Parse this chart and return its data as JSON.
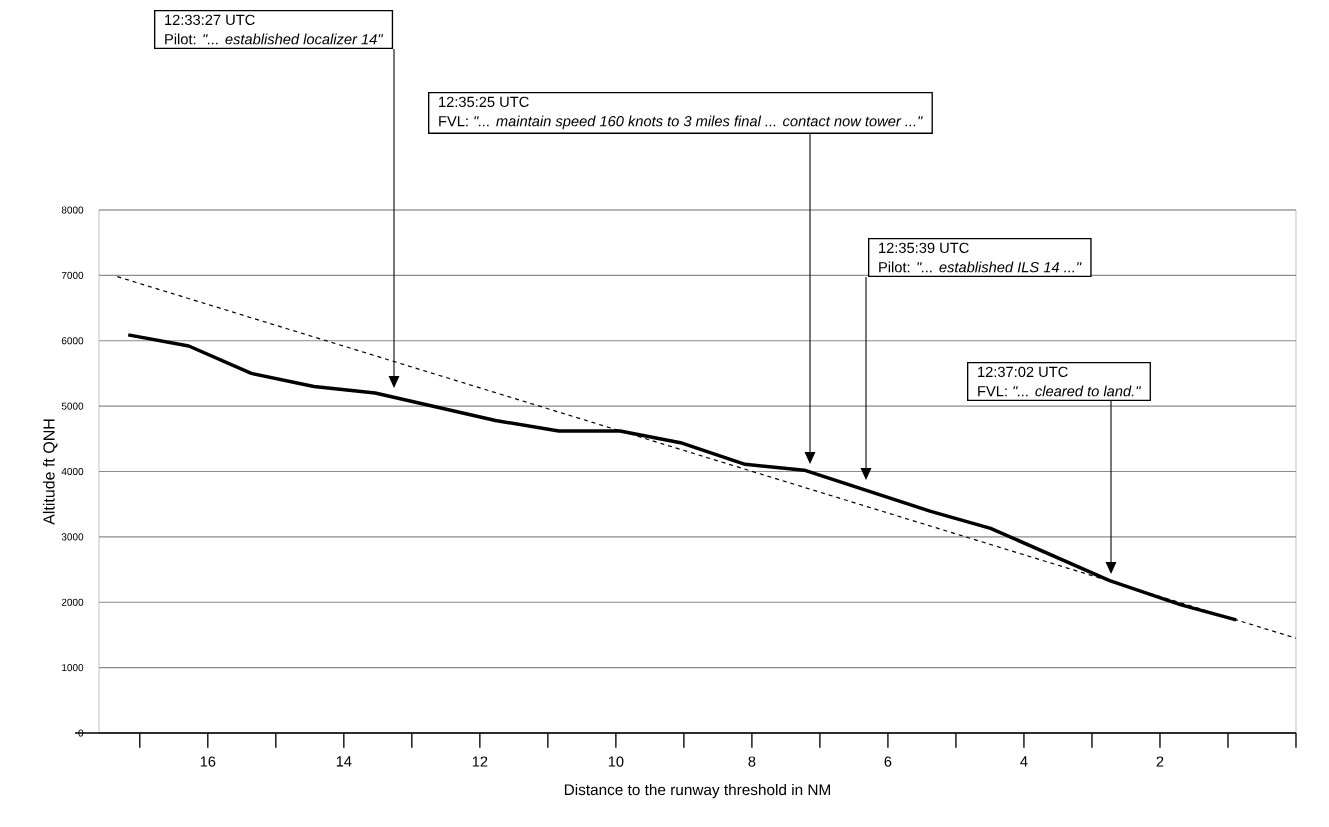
{
  "chart_data": {
    "type": "line",
    "xlabel": "Distance to the runway threshold in NM",
    "ylabel": "Altitude ft QNH",
    "xlim": [
      17.6,
      0
    ],
    "ylim": [
      0,
      8000
    ],
    "xticks": [
      {
        "value": 17,
        "label": null
      },
      16,
      {
        "value": 15,
        "label": null
      },
      14,
      {
        "value": 13,
        "label": null
      },
      12,
      {
        "value": 11,
        "label": null
      },
      10,
      {
        "value": 9,
        "label": null
      },
      8,
      {
        "value": 7,
        "label": null
      },
      6,
      {
        "value": 5,
        "label": null
      },
      4,
      {
        "value": 3,
        "label": null
      },
      2,
      {
        "value": 1,
        "label": null
      },
      {
        "value": 0,
        "label": null
      }
    ],
    "yticks": [
      0,
      1000,
      2000,
      3000,
      4000,
      5000,
      6000,
      7000,
      8000
    ],
    "grid": "y",
    "series": [
      {
        "color": "#000000",
        "line_style": "solid",
        "x": [
          17.17,
          16.28,
          15.36,
          14.44,
          13.54,
          11.77,
          10.84,
          9.94,
          9.05,
          8.1,
          7.23,
          5.37,
          4.49,
          2.74,
          1.69,
          0.88
        ],
        "values": [
          6090,
          5920,
          5500,
          5300,
          5200,
          4780,
          4620,
          4620,
          4440,
          4110,
          4020,
          3390,
          3130,
          2330,
          1960,
          1730
        ]
      },
      {
        "type": "line",
        "color": "#000000",
        "line_style": "dashed",
        "x": [
          17.33,
          0
        ],
        "values": [
          6980,
          1450
        ]
      }
    ],
    "annotations": [
      "12:33:27 UTC",
      "Pilot: *\"... established localizer 14\"*",
      "12:35:25 UTC",
      "FVL: *\"... maintain speed 160 knots to 3 miles final ... contact now tower ...\"*",
      "12:35:39 UTC",
      "Pilot: *\"... established ILS 14 ...\"*",
      "12:37:02 UTC",
      "FVL: *\"... cleared to land.\"*"
    ]
  }
}
